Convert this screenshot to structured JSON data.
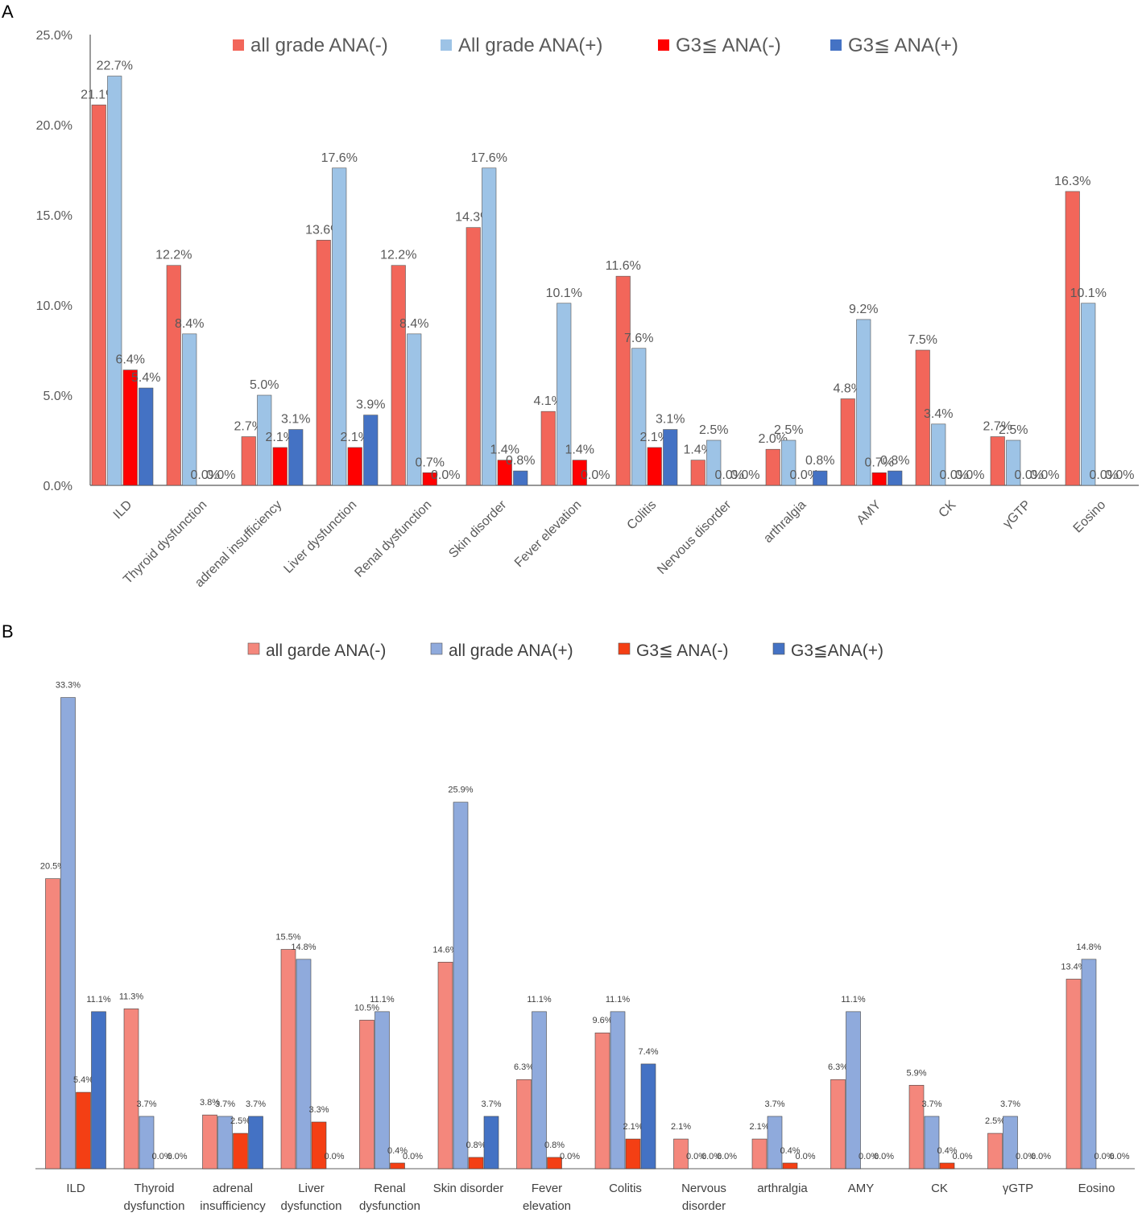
{
  "panels": [
    {
      "letter": "A"
    },
    {
      "letter": "B"
    }
  ],
  "chart_data": [
    {
      "type": "bar",
      "panel": "A",
      "categories": [
        "ILD",
        "Thyroid dysfunction",
        "adrenal insufficiency",
        "Liver dysfunction",
        "Renal dysfunction",
        "Skin disorder",
        "Fever elevation",
        "Colitis",
        "Nervous disorder",
        "arthralgia",
        "AMY",
        "CK",
        "γGTP",
        "Eosino"
      ],
      "series": [
        {
          "name": "all grade ANA(-)",
          "color": "#f2665a",
          "values": [
            21.1,
            12.2,
            2.7,
            13.6,
            12.2,
            14.3,
            4.1,
            11.6,
            1.4,
            2.0,
            4.8,
            7.5,
            2.7,
            16.3
          ],
          "labels": [
            "21.1%",
            "12.2%",
            "2.7%",
            "13.6%",
            "12.2%",
            "14.3%",
            "4.1%",
            "11.6%",
            "1.4%",
            "2.0%",
            "4.8%",
            "7.5%",
            "2.7%",
            "16.3%"
          ]
        },
        {
          "name": "All grade ANA(+)",
          "color": "#9dc3e6",
          "values": [
            22.7,
            8.4,
            5.0,
            17.6,
            8.4,
            17.6,
            10.1,
            7.6,
            2.5,
            2.5,
            9.2,
            3.4,
            2.5,
            10.1
          ],
          "labels": [
            "22.7%",
            "8.4%",
            "5.0%",
            "17.6%",
            "8.4%",
            "17.6%",
            "10.1%",
            "7.6%",
            "2.5%",
            "2.5%",
            "9.2%",
            "3.4%",
            "2.5%",
            "10.1%"
          ]
        },
        {
          "name": "G3≦ ANA(-)",
          "color": "#ff0000",
          "values": [
            6.4,
            0.0,
            2.1,
            2.1,
            0.7,
            1.4,
            1.4,
            2.1,
            0.0,
            0.0,
            0.7,
            0.0,
            0.0,
            0.0
          ],
          "labels": [
            "6.4%",
            "0.0%",
            "2.1%",
            "2.1%",
            "0.7%",
            "1.4%",
            "1.4%",
            "2.1%",
            "0.0%",
            "0.0%",
            "0.7%",
            "0.0%",
            "0.0%",
            "0.0%"
          ]
        },
        {
          "name": "G3≦ ANA(+)",
          "color": "#4472c4",
          "values": [
            5.4,
            0.0,
            3.1,
            3.9,
            0.0,
            0.8,
            0.0,
            3.1,
            0.0,
            0.8,
            0.8,
            0.0,
            0.0,
            0.0
          ],
          "labels": [
            "5.4%",
            "0.0%",
            "3.1%",
            "3.9%",
            "0.0%",
            "0.8%",
            "0.0%",
            "3.1%",
            "0.0%",
            "0.8%",
            "0.8%",
            "0.0%",
            "0.0%",
            "0.0%"
          ]
        }
      ],
      "yticks": [
        "0.0%",
        "5.0%",
        "10.0%",
        "15.0%",
        "20.0%",
        "25.0%"
      ],
      "ylim": [
        0,
        25
      ],
      "legend_position": "top",
      "grid": false
    },
    {
      "type": "bar",
      "panel": "B",
      "categories": [
        [
          "ILD"
        ],
        [
          "Thyroid",
          "dysfunction"
        ],
        [
          "adrenal",
          "insufficiency"
        ],
        [
          "Liver",
          "dysfunction"
        ],
        [
          "Renal",
          "dysfunction"
        ],
        [
          "Skin  disorder"
        ],
        [
          "Fever",
          "elevation"
        ],
        [
          "Colitis"
        ],
        [
          "Nervous",
          "disorder"
        ],
        [
          "arthralgia"
        ],
        [
          "AMY"
        ],
        [
          "CK"
        ],
        [
          "γGTP"
        ],
        [
          "Eosino"
        ]
      ],
      "series": [
        {
          "name": "all garde ANA(-)",
          "color": "#f4877c",
          "values": [
            20.5,
            11.3,
            3.8,
            15.5,
            10.5,
            14.6,
            6.3,
            9.6,
            2.1,
            2.1,
            6.3,
            5.9,
            2.5,
            13.4
          ],
          "labels": [
            "20.5%",
            "11.3%",
            "3.8%",
            "15.5%",
            "10.5%",
            "14.6%",
            "6.3%",
            "9.6%",
            "2.1%",
            "2.1%",
            "6.3%",
            "5.9%",
            "2.5%",
            "13.4%"
          ]
        },
        {
          "name": "all grade ANA(+)",
          "color": "#8faadc",
          "values": [
            33.3,
            3.7,
            3.7,
            14.8,
            11.1,
            25.9,
            11.1,
            11.1,
            0.0,
            3.7,
            11.1,
            3.7,
            3.7,
            14.8
          ],
          "labels": [
            "33.3%",
            "3.7%",
            "3.7%",
            "14.8%",
            "11.1%",
            "25.9%",
            "11.1%",
            "11.1%",
            "0.0%",
            "3.7%",
            "11.1%",
            "3.7%",
            "3.7%",
            "14.8%"
          ]
        },
        {
          "name": "G3≦ ANA(-)",
          "color": "#f43f14",
          "values": [
            5.4,
            0.0,
            2.5,
            3.3,
            0.4,
            0.8,
            0.8,
            2.1,
            0.0,
            0.4,
            0.0,
            0.4,
            0.0,
            0.0
          ],
          "labels": [
            "5.4%",
            "0.0%",
            "2.5%",
            "3.3%",
            "0.4%",
            "0.8%",
            "0.8%",
            "2.1%",
            "0.0%",
            "0.4%",
            "0.0%",
            "0.4%",
            "0.0%",
            "0.0%"
          ]
        },
        {
          "name": "G3≦ANA(+)",
          "color": "#4472c4",
          "values": [
            11.1,
            0.0,
            3.7,
            0.0,
            0.0,
            3.7,
            0.0,
            7.4,
            0.0,
            0.0,
            0.0,
            0.0,
            0.0,
            0.0
          ],
          "labels": [
            "11.1%",
            "0.0%",
            "3.7%",
            "0.0%",
            "0.0%",
            "3.7%",
            "0.0%",
            "7.4%",
            "0.0%",
            "0.0%",
            "0.0%",
            "0.0%",
            "0.0%",
            "0.0%"
          ]
        }
      ],
      "ylim": [
        0,
        35
      ],
      "legend_position": "top",
      "grid": false
    }
  ]
}
